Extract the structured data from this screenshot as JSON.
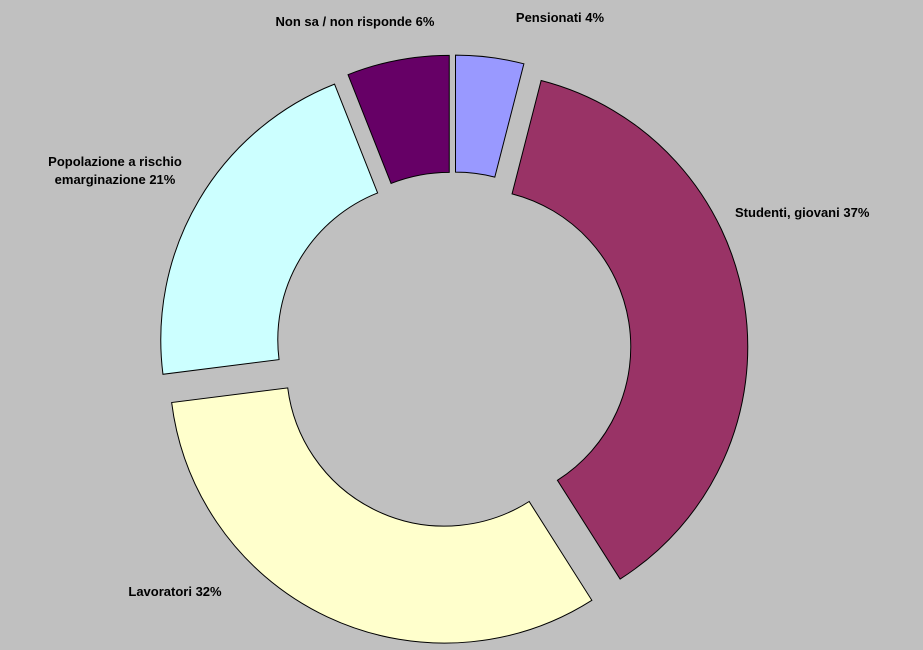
{
  "chart_data": {
    "type": "donut",
    "categories": [
      "Pensionati",
      "Studenti, giovani",
      "Lavoratori",
      "Popolazione a rischio emarginazione",
      "Non sa / non risponde"
    ],
    "values": [
      4,
      37,
      32,
      21,
      6
    ],
    "value_labels": [
      "4%",
      "37%",
      "32%",
      "21%",
      "6%"
    ],
    "colors": [
      "#9999ff",
      "#993366",
      "#ffffcc",
      "#ccffff",
      "#660066"
    ]
  }
}
